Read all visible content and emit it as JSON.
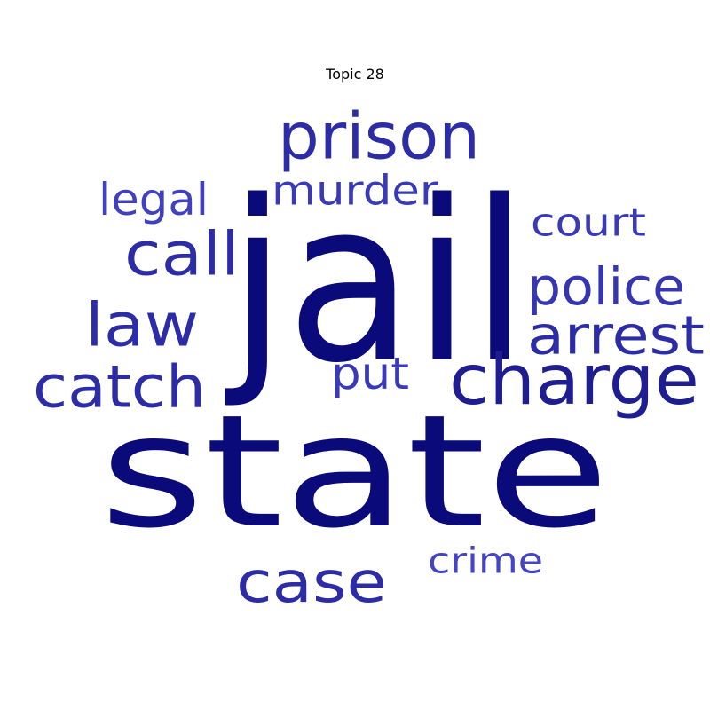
{
  "title": "Topic 28",
  "words": [
    {
      "text": "state",
      "color": "#0a0a7a"
    },
    {
      "text": "jail",
      "color": "#0a0a7a"
    },
    {
      "text": "prison",
      "color": "#2c2ca6"
    },
    {
      "text": "charge",
      "color": "#1e1e90"
    },
    {
      "text": "arrest",
      "color": "#2c2ca6"
    },
    {
      "text": "call",
      "color": "#2c2ca6"
    },
    {
      "text": "law",
      "color": "#2c2ca6"
    },
    {
      "text": "catch",
      "color": "#2c2ca6"
    },
    {
      "text": "case",
      "color": "#2c2ca6"
    },
    {
      "text": "police",
      "color": "#3636b2"
    },
    {
      "text": "murder",
      "color": "#3a3ab8"
    },
    {
      "text": "legal",
      "color": "#4040c0"
    },
    {
      "text": "court",
      "color": "#3a3ab8"
    },
    {
      "text": "put",
      "color": "#3a3ab8"
    },
    {
      "text": "crime",
      "color": "#4444c4"
    }
  ]
}
